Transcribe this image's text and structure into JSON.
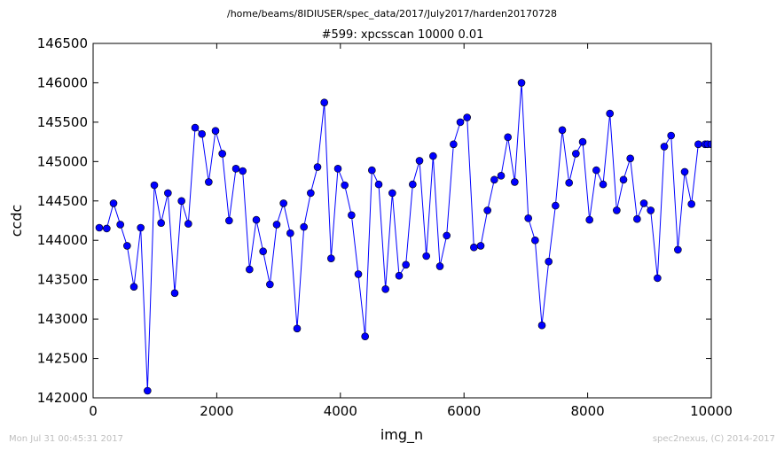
{
  "header": {
    "path": "/home/beams/8IDIUSER/spec_data/2017/July2017/harden20170728"
  },
  "footer": {
    "timestamp": "Mon Jul 31 00:45:31 2017",
    "credit": "spec2nexus, (C) 2014-2017"
  },
  "chart_data": {
    "type": "line",
    "title": "#599: xpcsscan 10000 0.01",
    "xlabel": "img_n",
    "ylabel": "ccdc",
    "xlim": [
      0,
      10000
    ],
    "ylim": [
      142000,
      146500
    ],
    "xticks": [
      0,
      2000,
      4000,
      6000,
      8000,
      10000
    ],
    "yticks": [
      142000,
      142500,
      143000,
      143500,
      144000,
      144500,
      145000,
      145500,
      146000,
      146500
    ],
    "grid": false,
    "series_color": "#0000ff",
    "marker": "circle",
    "series": [
      {
        "x": [
          100,
          220,
          330,
          440,
          550,
          660,
          770,
          880,
          990,
          1100,
          1210,
          1320,
          1430,
          1540,
          1650,
          1760,
          1870,
          1980,
          2090,
          2200,
          2310,
          2420,
          2530,
          2640,
          2750,
          2860,
          2970,
          3080,
          3190,
          3300,
          3410,
          3520,
          3630,
          3740,
          3850,
          3960,
          4070,
          4180,
          4290,
          4400,
          4510,
          4620,
          4730,
          4840,
          4950,
          5060,
          5170,
          5280,
          5390,
          5500,
          5610,
          5720,
          5830,
          5940,
          6050,
          6160,
          6270,
          6380,
          6490,
          6600,
          6710,
          6820,
          6930,
          7040,
          7150,
          7260,
          7370,
          7480,
          7590,
          7700,
          7810,
          7920,
          8030,
          8140,
          8250,
          8360,
          8470,
          8580,
          8690,
          8800,
          8910,
          9020,
          9130,
          9240,
          9350,
          9460,
          9570,
          9680,
          9790,
          9900,
          9940,
          10000
        ],
        "y": [
          144160,
          144150,
          144470,
          144200,
          143930,
          143410,
          144160,
          142090,
          144700,
          144220,
          144600,
          143330,
          144500,
          144210,
          145430,
          145350,
          144740,
          145390,
          145100,
          144250,
          144910,
          144880,
          143630,
          144260,
          143860,
          143440,
          144200,
          144470,
          144090,
          142880,
          144170,
          144600,
          144930,
          145750,
          143770,
          144910,
          144700,
          144320,
          143570,
          142780,
          144890,
          144710,
          143380,
          144600,
          143550,
          143690,
          144710,
          145010,
          143800,
          145070,
          143670,
          144060,
          145220,
          145500,
          145560,
          143910,
          143930,
          144380,
          144770,
          144820,
          145310,
          144740,
          146000,
          144280,
          144000,
          142920,
          143730,
          144440,
          145400,
          144730,
          145100,
          145250,
          144260,
          144890,
          144710,
          145610,
          144380,
          144770,
          145040,
          144270,
          144470,
          144380,
          143520,
          145190,
          145330,
          143880,
          144870,
          144460,
          145220,
          145220,
          145220,
          145220
        ]
      }
    ]
  }
}
